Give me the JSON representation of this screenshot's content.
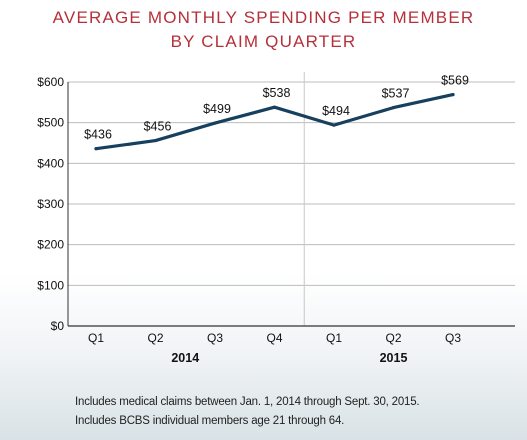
{
  "title_lines": [
    "AVERAGE MONTHLY SPENDING PER MEMBER",
    "BY CLAIM QUARTER"
  ],
  "footnotes": [
    "Includes medical claims between Jan. 1, 2014 through Sept. 30, 2015.",
    "Includes BCBS individual members age 21 through 64."
  ],
  "colors": {
    "title": "#b5303a",
    "line": "#16405e",
    "grid": "#bdbdbd",
    "divider": "#c8c8c8"
  },
  "chart_data": {
    "type": "line",
    "title": "AVERAGE MONTHLY SPENDING PER MEMBER BY CLAIM QUARTER",
    "categories": [
      "Q1",
      "Q2",
      "Q3",
      "Q4",
      "Q1",
      "Q2",
      "Q3"
    ],
    "years": [
      {
        "label": "2014",
        "start": 0,
        "end": 3
      },
      {
        "label": "2015",
        "start": 4,
        "end": 6
      }
    ],
    "values": [
      436,
      456,
      499,
      538,
      494,
      537,
      569
    ],
    "value_labels": [
      "$436",
      "$456",
      "$499",
      "$538",
      "$494",
      "$537",
      "$569"
    ],
    "y_ticks": [
      0,
      100,
      200,
      300,
      400,
      500,
      600
    ],
    "y_tick_labels": [
      "$0",
      "$100",
      "$200",
      "$300",
      "$400",
      "$500",
      "$600"
    ],
    "ylim": [
      0,
      600
    ],
    "grid": true,
    "xlabel": "",
    "ylabel": ""
  }
}
